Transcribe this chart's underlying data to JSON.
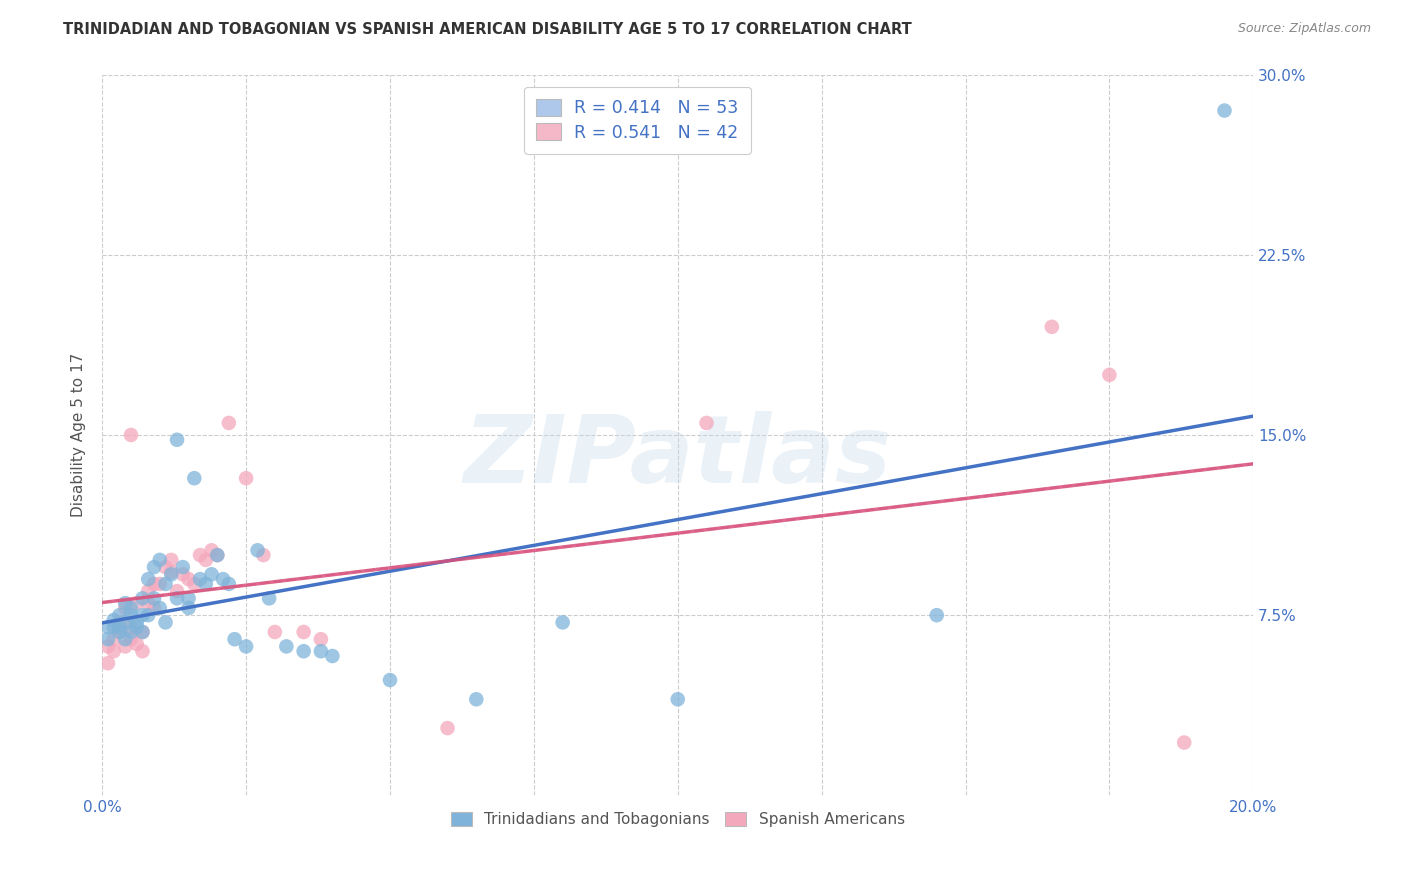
{
  "title": "TRINIDADIAN AND TOBAGONIAN VS SPANISH AMERICAN DISABILITY AGE 5 TO 17 CORRELATION CHART",
  "source": "Source: ZipAtlas.com",
  "ylabel": "Disability Age 5 to 17",
  "xlim": [
    0.0,
    0.2
  ],
  "ylim": [
    0.0,
    0.3
  ],
  "xticks": [
    0.0,
    0.025,
    0.05,
    0.075,
    0.1,
    0.125,
    0.15,
    0.175,
    0.2
  ],
  "xtick_labels_show": [
    "0.0%",
    "",
    "",
    "",
    "",
    "",
    "",
    "",
    "20.0%"
  ],
  "yticks_right": [
    0.075,
    0.15,
    0.225,
    0.3
  ],
  "ytick_labels_right": [
    "7.5%",
    "15.0%",
    "22.5%",
    "30.0%"
  ],
  "legend_items": [
    {
      "label_r": "R = 0.414",
      "label_n": "N = 53",
      "color": "#adc8ea"
    },
    {
      "label_r": "R = 0.541",
      "label_n": "N = 42",
      "color": "#f4b8c8"
    }
  ],
  "watermark": "ZIPatlas",
  "series1_color": "#7fb3d9",
  "series2_color": "#f4a8bc",
  "line1_color": "#4472c4",
  "line2_color": "#d94f7a",
  "line2_dashed_color": "#d4a0b4",
  "tri_x": [
    0.001,
    0.001,
    0.002,
    0.002,
    0.003,
    0.003,
    0.003,
    0.004,
    0.004,
    0.004,
    0.005,
    0.005,
    0.005,
    0.006,
    0.006,
    0.007,
    0.007,
    0.007,
    0.008,
    0.008,
    0.009,
    0.009,
    0.01,
    0.01,
    0.011,
    0.011,
    0.012,
    0.013,
    0.013,
    0.014,
    0.015,
    0.015,
    0.016,
    0.017,
    0.018,
    0.019,
    0.02,
    0.021,
    0.022,
    0.023,
    0.025,
    0.027,
    0.029,
    0.032,
    0.035,
    0.038,
    0.04,
    0.05,
    0.065,
    0.08,
    0.1,
    0.145,
    0.195
  ],
  "tri_y": [
    0.065,
    0.07,
    0.07,
    0.073,
    0.068,
    0.07,
    0.075,
    0.065,
    0.072,
    0.08,
    0.068,
    0.075,
    0.078,
    0.07,
    0.072,
    0.068,
    0.075,
    0.082,
    0.075,
    0.09,
    0.082,
    0.095,
    0.078,
    0.098,
    0.072,
    0.088,
    0.092,
    0.148,
    0.082,
    0.095,
    0.082,
    0.078,
    0.132,
    0.09,
    0.088,
    0.092,
    0.1,
    0.09,
    0.088,
    0.065,
    0.062,
    0.102,
    0.082,
    0.062,
    0.06,
    0.06,
    0.058,
    0.048,
    0.04,
    0.072,
    0.04,
    0.075,
    0.285
  ],
  "sp_x": [
    0.001,
    0.001,
    0.002,
    0.002,
    0.003,
    0.003,
    0.004,
    0.004,
    0.005,
    0.005,
    0.005,
    0.006,
    0.006,
    0.007,
    0.007,
    0.008,
    0.008,
    0.009,
    0.009,
    0.01,
    0.011,
    0.012,
    0.012,
    0.013,
    0.014,
    0.015,
    0.016,
    0.017,
    0.018,
    0.019,
    0.02,
    0.022,
    0.025,
    0.028,
    0.03,
    0.035,
    0.038,
    0.06,
    0.105,
    0.165,
    0.175,
    0.188
  ],
  "sp_y": [
    0.055,
    0.062,
    0.06,
    0.065,
    0.068,
    0.072,
    0.062,
    0.078,
    0.065,
    0.07,
    0.15,
    0.063,
    0.08,
    0.06,
    0.068,
    0.085,
    0.08,
    0.078,
    0.088,
    0.088,
    0.095,
    0.093,
    0.098,
    0.085,
    0.092,
    0.09,
    0.088,
    0.1,
    0.098,
    0.102,
    0.1,
    0.155,
    0.132,
    0.1,
    0.068,
    0.068,
    0.065,
    0.028,
    0.155,
    0.195,
    0.175,
    0.022
  ],
  "grid_color": "#cccccc",
  "background_color": "#ffffff",
  "title_color": "#333333",
  "ylabel_color": "#555555",
  "tick_label_color_x": "#555555",
  "tick_label_color_y": "#4472c4"
}
